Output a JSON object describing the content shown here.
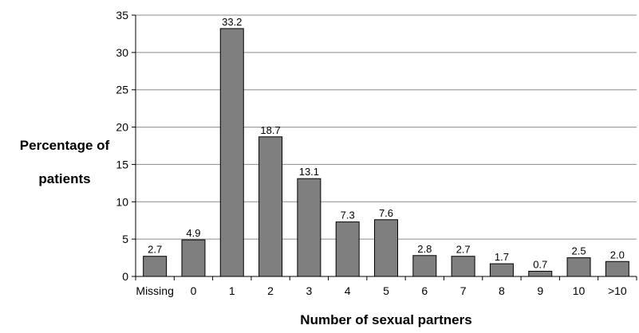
{
  "chart_data": {
    "type": "bar",
    "title": "",
    "xlabel": "Number of sexual partners",
    "ylabel_lines": [
      "Percentage of",
      "patients"
    ],
    "categories": [
      "Missing",
      "0",
      "1",
      "2",
      "3",
      "4",
      "5",
      "6",
      "7",
      "8",
      "9",
      "10",
      ">10"
    ],
    "values": [
      2.7,
      4.9,
      33.2,
      18.7,
      13.1,
      7.3,
      7.6,
      2.8,
      2.7,
      1.7,
      0.7,
      2.5,
      2.0
    ],
    "data_labels": [
      "2.7",
      "4.9",
      "33.2",
      "18.7",
      "13.1",
      "7.3",
      "7.6",
      "2.8",
      "2.7",
      "1.7",
      "0.7",
      "2.5",
      "2.0"
    ],
    "ylim": [
      0,
      35
    ],
    "yticks": [
      "0",
      "5",
      "10",
      "15",
      "20",
      "25",
      "30",
      "35"
    ],
    "grid": true,
    "legend": "none",
    "colors": {
      "bar_fill": "#7f7f7f",
      "bar_stroke": "#000000",
      "grid": "#8c8c8c"
    }
  }
}
